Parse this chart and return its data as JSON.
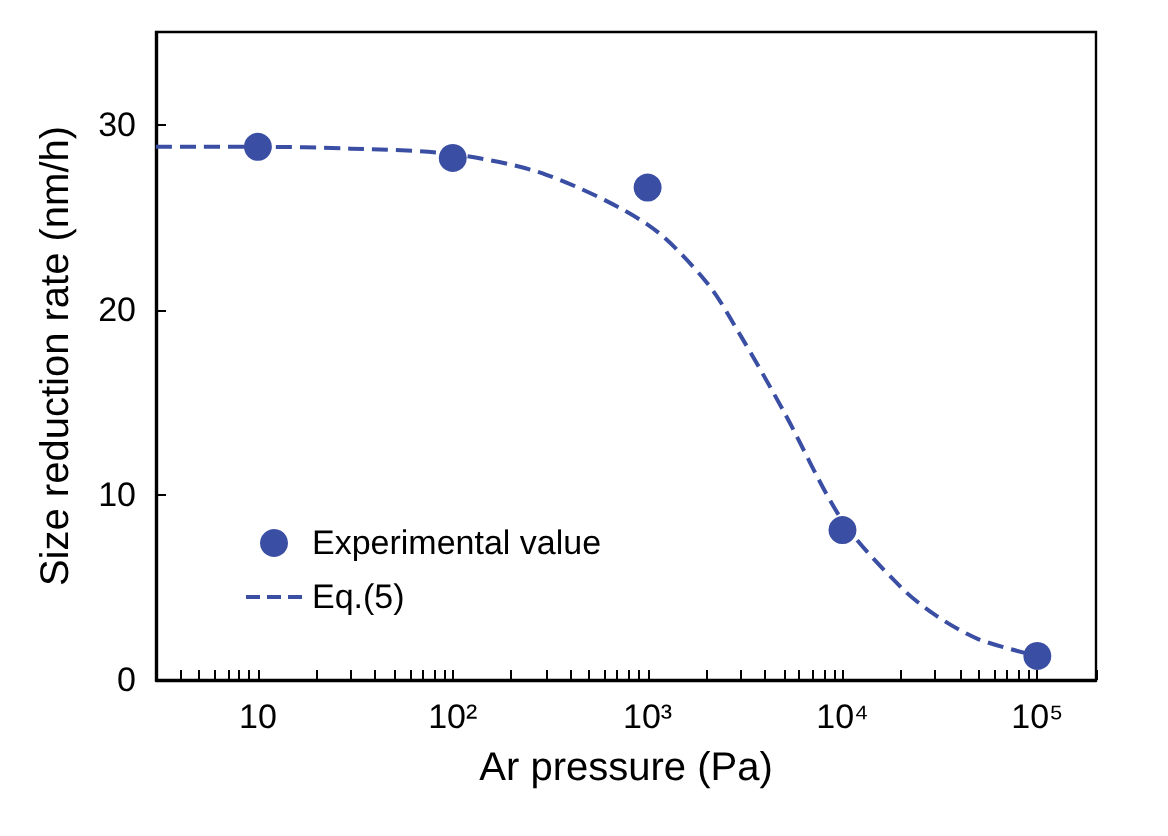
{
  "chart_data": {
    "type": "scatter",
    "xlabel": "Ar pressure (Pa)",
    "ylabel": "Size reduction rate (nm/h)",
    "log": "x",
    "grid": false,
    "legend": "left",
    "xlim": [
      3,
      200000
    ],
    "ylim": [
      0,
      35
    ],
    "yticks": [
      0,
      10,
      20,
      30
    ],
    "xticks": [
      {
        "value": 3,
        "label": null
      },
      {
        "value": 4,
        "label": null
      },
      {
        "value": 5,
        "label": null
      },
      {
        "value": 6,
        "label": null
      },
      {
        "value": 7,
        "label": null
      },
      {
        "value": 8,
        "label": null
      },
      {
        "value": 9,
        "label": null
      },
      10,
      {
        "value": 20,
        "label": null
      },
      {
        "value": 30,
        "label": null
      },
      {
        "value": 40,
        "label": null
      },
      {
        "value": 50,
        "label": null
      },
      {
        "value": 60,
        "label": null
      },
      {
        "value": 70,
        "label": null
      },
      {
        "value": 80,
        "label": null
      },
      {
        "value": 90,
        "label": null
      },
      {
        "value": 100,
        "label": "10²"
      },
      {
        "value": 200,
        "label": null
      },
      {
        "value": 300,
        "label": null
      },
      {
        "value": 400,
        "label": null
      },
      {
        "value": 500,
        "label": null
      },
      {
        "value": 600,
        "label": null
      },
      {
        "value": 700,
        "label": null
      },
      {
        "value": 800,
        "label": null
      },
      {
        "value": 900,
        "label": null
      },
      {
        "value": 1000,
        "label": "10³"
      },
      {
        "value": 2000,
        "label": null
      },
      {
        "value": 3000,
        "label": null
      },
      {
        "value": 4000,
        "label": null
      },
      {
        "value": 5000,
        "label": null
      },
      {
        "value": 6000,
        "label": null
      },
      {
        "value": 7000,
        "label": null
      },
      {
        "value": 8000,
        "label": null
      },
      {
        "value": 9000,
        "label": null
      },
      {
        "value": 10000,
        "label": "10⁴"
      },
      {
        "value": 20000,
        "label": null
      },
      {
        "value": 30000,
        "label": null
      },
      {
        "value": 40000,
        "label": null
      },
      {
        "value": 50000,
        "label": null
      },
      {
        "value": 60000,
        "label": null
      },
      {
        "value": 70000,
        "label": null
      },
      {
        "value": 80000,
        "label": null
      },
      {
        "value": 90000,
        "label": null
      },
      {
        "value": 100000,
        "label": "10⁵"
      },
      {
        "value": 200000,
        "label": null
      }
    ],
    "series": [
      {
        "name": "Experimental value",
        "marker": "circle",
        "color": "#3a4ea3",
        "x": [
          10,
          100,
          1000,
          10000,
          100000
        ],
        "values": [
          28.8,
          28.2,
          26.6,
          8.1,
          1.3
        ]
      },
      {
        "name": "Eq.(5)",
        "type": "line",
        "marker": "none",
        "line_style": "dashed",
        "color": "#3a4ea3",
        "x": [
          3,
          10,
          30,
          100,
          300,
          1000,
          2000,
          3000,
          5000,
          10000,
          20000,
          30000,
          50000,
          100000
        ],
        "values": [
          28.8,
          28.8,
          28.7,
          28.4,
          27.3,
          24.6,
          21.5,
          18.6,
          14.5,
          8.6,
          5.0,
          3.5,
          2.2,
          1.3
        ]
      }
    ]
  }
}
